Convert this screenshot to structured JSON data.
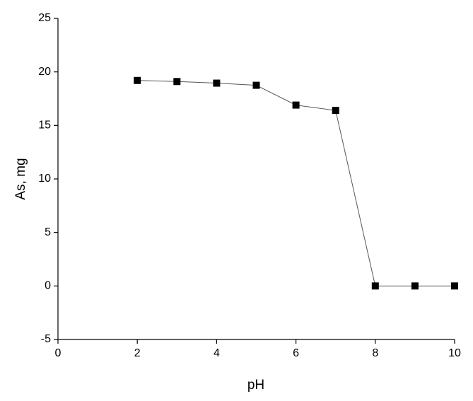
{
  "chart_data": {
    "type": "line",
    "x_label": "pH",
    "y_label": "As, mg",
    "x": [
      2,
      3,
      4,
      5,
      6,
      7,
      8,
      9,
      10
    ],
    "series": [
      {
        "color": "#000000",
        "values": [
          19.2,
          19.1,
          18.95,
          18.75,
          16.9,
          16.4,
          0,
          0,
          0
        ]
      }
    ],
    "xlim": [
      0,
      10
    ],
    "xticks": [
      0,
      2,
      4,
      6,
      8,
      10
    ],
    "ylim": [
      -5,
      25
    ],
    "yticks": [
      -5,
      0,
      5,
      10,
      15,
      20,
      25
    ],
    "grid": false
  }
}
